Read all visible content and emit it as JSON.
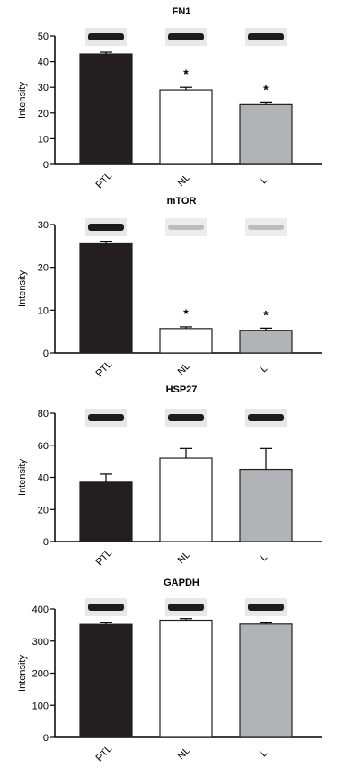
{
  "chart_data": [
    {
      "type": "bar",
      "title": "FN1",
      "ylabel": "Intensity",
      "categories": [
        "PTL",
        "NL",
        "L"
      ],
      "values": [
        43,
        29,
        23.3
      ],
      "errors": [
        0.7,
        1.0,
        0.7
      ],
      "significance": [
        "",
        "*",
        "*"
      ],
      "ylim": [
        0,
        50
      ],
      "yticks": [
        0,
        10,
        20,
        30,
        40,
        50
      ],
      "bar_colors": [
        "#231f20",
        "#ffffff",
        "#b1b3b6"
      ],
      "blot_intensity": [
        "strong",
        "strong",
        "strong"
      ],
      "grid": false
    },
    {
      "type": "bar",
      "title": "mTOR",
      "ylabel": "Intensity",
      "categories": [
        "PTL",
        "NL",
        "L"
      ],
      "values": [
        25.5,
        5.7,
        5.3
      ],
      "errors": [
        0.6,
        0.4,
        0.5
      ],
      "significance": [
        "",
        "*",
        "*"
      ],
      "ylim": [
        0,
        30
      ],
      "yticks": [
        0,
        10,
        20,
        30
      ],
      "bar_colors": [
        "#231f20",
        "#ffffff",
        "#b1b3b6"
      ],
      "blot_intensity": [
        "strong",
        "faint",
        "faint"
      ],
      "grid": false
    },
    {
      "type": "bar",
      "title": "HSP27",
      "ylabel": "Intensity",
      "categories": [
        "PTL",
        "NL",
        "L"
      ],
      "values": [
        37,
        52,
        45
      ],
      "errors": [
        5,
        6,
        13
      ],
      "significance": [
        "",
        "",
        ""
      ],
      "ylim": [
        0,
        80
      ],
      "yticks": [
        0,
        20,
        40,
        60,
        80
      ],
      "bar_colors": [
        "#231f20",
        "#ffffff",
        "#b1b3b6"
      ],
      "blot_intensity": [
        "strong",
        "strong",
        "strong"
      ],
      "grid": false
    },
    {
      "type": "bar",
      "title": "GAPDH",
      "ylabel": "Intensity",
      "categories": [
        "PTL",
        "NL",
        "L"
      ],
      "values": [
        352,
        365,
        353
      ],
      "errors": [
        5,
        5,
        4
      ],
      "significance": [
        "",
        "",
        ""
      ],
      "ylim": [
        0,
        400
      ],
      "yticks": [
        0,
        100,
        200,
        300,
        400
      ],
      "bar_colors": [
        "#231f20",
        "#ffffff",
        "#b1b3b6"
      ],
      "blot_intensity": [
        "strong",
        "strong",
        "strong"
      ],
      "grid": false
    }
  ]
}
